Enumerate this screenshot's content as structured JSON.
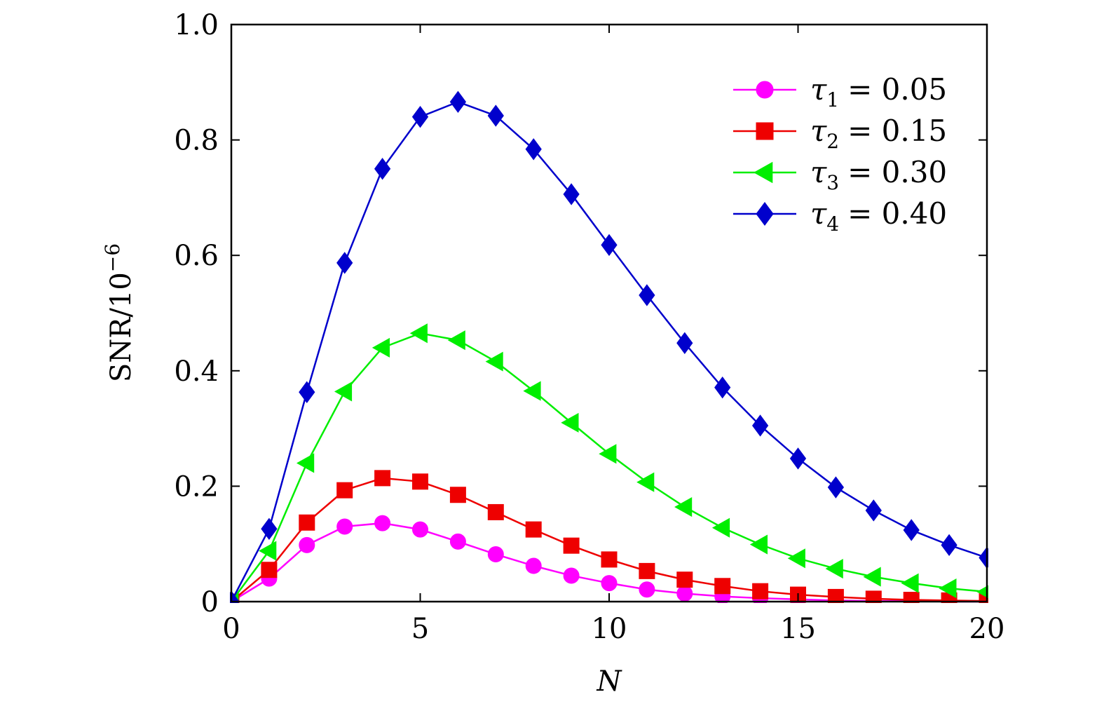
{
  "chart_data": {
    "type": "line",
    "xlabel": "N",
    "ylabel": "SNR/10",
    "ylabel_exponent": "−6",
    "xlim": [
      0,
      20
    ],
    "ylim": [
      0,
      1.0
    ],
    "x_ticks": [
      0,
      5,
      10,
      15,
      20
    ],
    "x_tick_labels": [
      "0",
      "5",
      "10",
      "15",
      "20"
    ],
    "y_ticks": [
      0,
      0.2,
      0.4,
      0.6,
      0.8,
      1.0
    ],
    "y_tick_labels": [
      "0",
      "0.2",
      "0.4",
      "0.6",
      "0.8",
      "1.0"
    ],
    "grid": false,
    "legend_position": "top-right",
    "x": [
      0,
      1,
      2,
      3,
      4,
      5,
      6,
      7,
      8,
      9,
      10,
      11,
      12,
      13,
      14,
      15,
      16,
      17,
      18,
      19,
      20
    ],
    "series": [
      {
        "name": "τ1 = 0.05",
        "legend_symbol": "τ",
        "legend_sub": "1",
        "legend_value": "= 0.05",
        "color": "#ff00ff",
        "marker": "circle",
        "values": [
          0.0,
          0.04,
          0.098,
          0.13,
          0.136,
          0.125,
          0.104,
          0.082,
          0.062,
          0.045,
          0.032,
          0.021,
          0.014,
          0.009,
          0.006,
          0.004,
          0.002,
          0.001,
          0.001,
          0.0,
          0.0
        ]
      },
      {
        "name": "τ2 = 0.15",
        "legend_symbol": "τ",
        "legend_sub": "2",
        "legend_value": "= 0.15",
        "color": "#ee0000",
        "marker": "square",
        "values": [
          0.0,
          0.055,
          0.137,
          0.193,
          0.214,
          0.208,
          0.185,
          0.155,
          0.125,
          0.097,
          0.073,
          0.053,
          0.038,
          0.027,
          0.018,
          0.012,
          0.008,
          0.005,
          0.003,
          0.002,
          0.001
        ]
      },
      {
        "name": "τ3 = 0.30",
        "legend_symbol": "τ",
        "legend_sub": "3",
        "legend_value": "= 0.30",
        "color": "#00ee00",
        "marker": "triangle-left",
        "values": [
          0.0,
          0.088,
          0.24,
          0.364,
          0.44,
          0.465,
          0.453,
          0.416,
          0.365,
          0.31,
          0.256,
          0.207,
          0.164,
          0.128,
          0.099,
          0.075,
          0.057,
          0.043,
          0.032,
          0.023,
          0.017
        ]
      },
      {
        "name": "τ4 = 0.40",
        "legend_symbol": "τ",
        "legend_sub": "4",
        "legend_value": "= 0.40",
        "color": "#0000cc",
        "marker": "diamond",
        "values": [
          0.0,
          0.126,
          0.363,
          0.587,
          0.75,
          0.84,
          0.866,
          0.842,
          0.784,
          0.706,
          0.618,
          0.531,
          0.448,
          0.371,
          0.305,
          0.248,
          0.198,
          0.158,
          0.124,
          0.098,
          0.076
        ]
      }
    ]
  }
}
